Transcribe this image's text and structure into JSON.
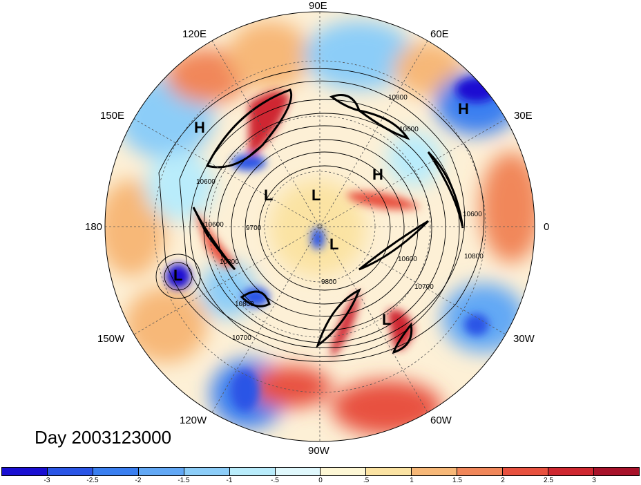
{
  "map": {
    "longitude_labels": {
      "e90": "90E",
      "e120": "120E",
      "e60": "60E",
      "e150": "150E",
      "e30": "30E",
      "d180": "180",
      "d0": "0",
      "w150": "150W",
      "w30": "30W",
      "w120": "120W",
      "w60": "60W",
      "w90": "90W"
    },
    "pressure_centers": {
      "h1": "H",
      "h2": "H",
      "h3": "H",
      "l1": "L",
      "l2": "L",
      "l3": "L",
      "l4": "L",
      "l5": "L"
    },
    "contour_labels": {
      "c1": "10800",
      "c2": "10600",
      "c3": "10600",
      "c4": "10600",
      "c5": "10800",
      "c6": "10700",
      "c7": "10600",
      "c8": "9800",
      "c9": "10700",
      "c10": "10800",
      "c11": "9700",
      "c12": "10600",
      "c13": "10800"
    },
    "day_label": "Day 2003123000"
  },
  "colorbar": {
    "colors": [
      "#1a0fd2",
      "#2a55e6",
      "#3a7ff0",
      "#62a8f5",
      "#8ccdf8",
      "#b9ecfb",
      "#e0f8fc",
      "#fdf7d5",
      "#fbe3a3",
      "#f7b878",
      "#f1875a",
      "#e8513f",
      "#cf2730",
      "#a8122a"
    ],
    "ticks": [
      "-3",
      "-2.5",
      "-2",
      "-1.5",
      "-1",
      "-.5",
      "0",
      ".5",
      "1",
      "1.5",
      "2",
      "2.5",
      "3"
    ]
  }
}
